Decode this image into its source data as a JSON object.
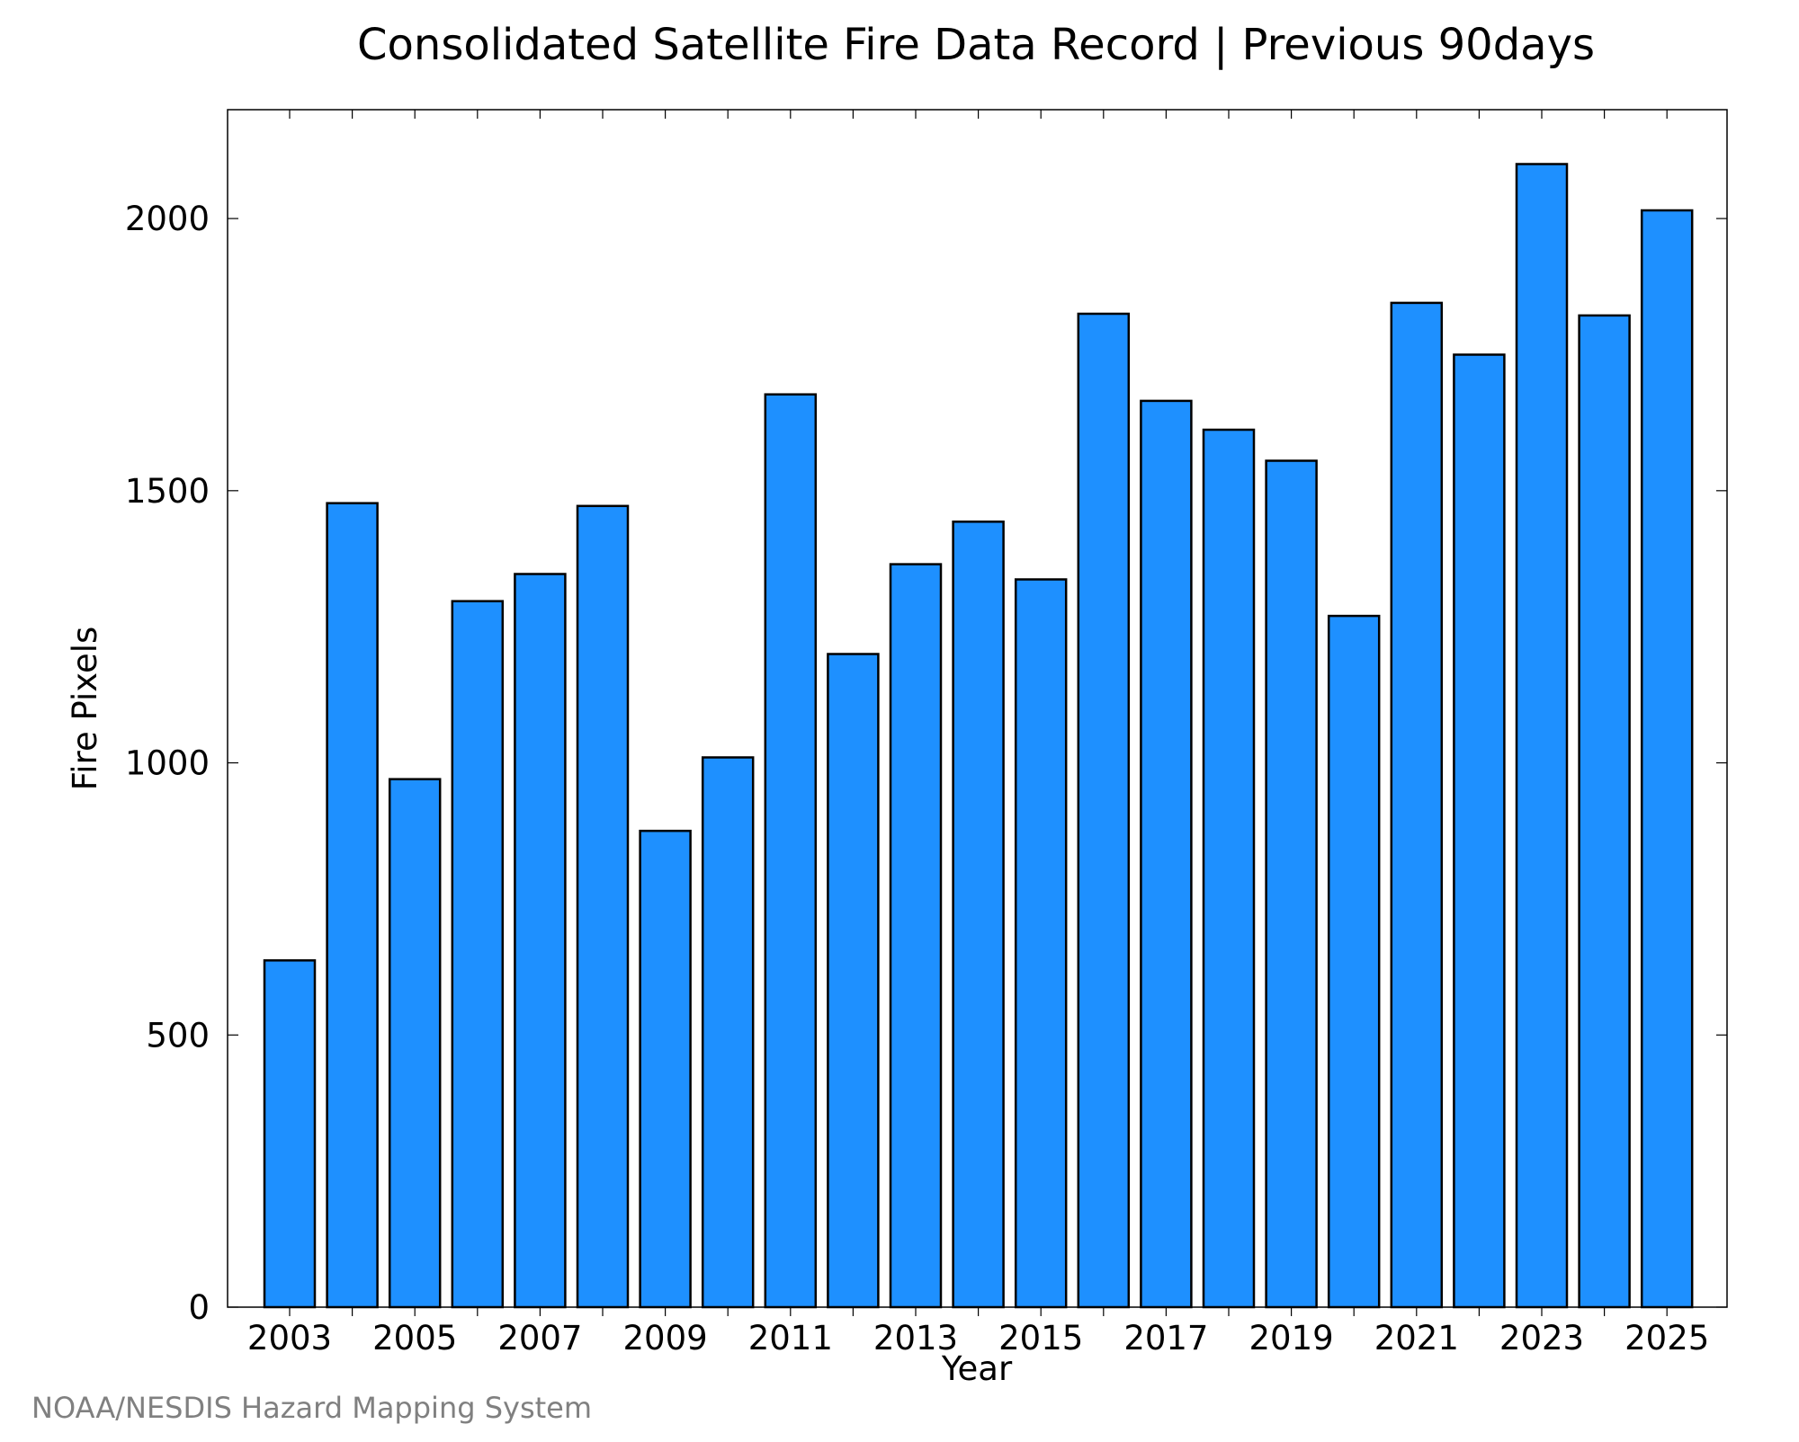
{
  "chart_data": {
    "type": "bar",
    "title": "Consolidated Satellite Fire Data Record | Previous 90days",
    "xlabel": "Year",
    "ylabel": "Fire Pixels",
    "categories": [
      "2003",
      "2004",
      "2005",
      "2006",
      "2007",
      "2008",
      "2009",
      "2010",
      "2011",
      "2012",
      "2013",
      "2014",
      "2015",
      "2016",
      "2017",
      "2018",
      "2019",
      "2020",
      "2021",
      "2022",
      "2023",
      "2024",
      "2025"
    ],
    "x_tick_labels": [
      "2003",
      "2005",
      "2007",
      "2009",
      "2011",
      "2013",
      "2015",
      "2017",
      "2019",
      "2021",
      "2023",
      "2025"
    ],
    "y_ticks": [
      0,
      500,
      1000,
      1500,
      2000
    ],
    "values": [
      637,
      1477,
      970,
      1297,
      1347,
      1472,
      875,
      1010,
      1677,
      1200,
      1365,
      1443,
      1337,
      1825,
      1665,
      1612,
      1555,
      1270,
      1845,
      1750,
      2100,
      1822,
      2015
    ],
    "ylim": [
      0,
      2200
    ],
    "bar_color": "#1e90ff",
    "grid": false,
    "legend": "none"
  },
  "footer": {
    "credit": "NOAA/NESDIS Hazard Mapping System"
  }
}
